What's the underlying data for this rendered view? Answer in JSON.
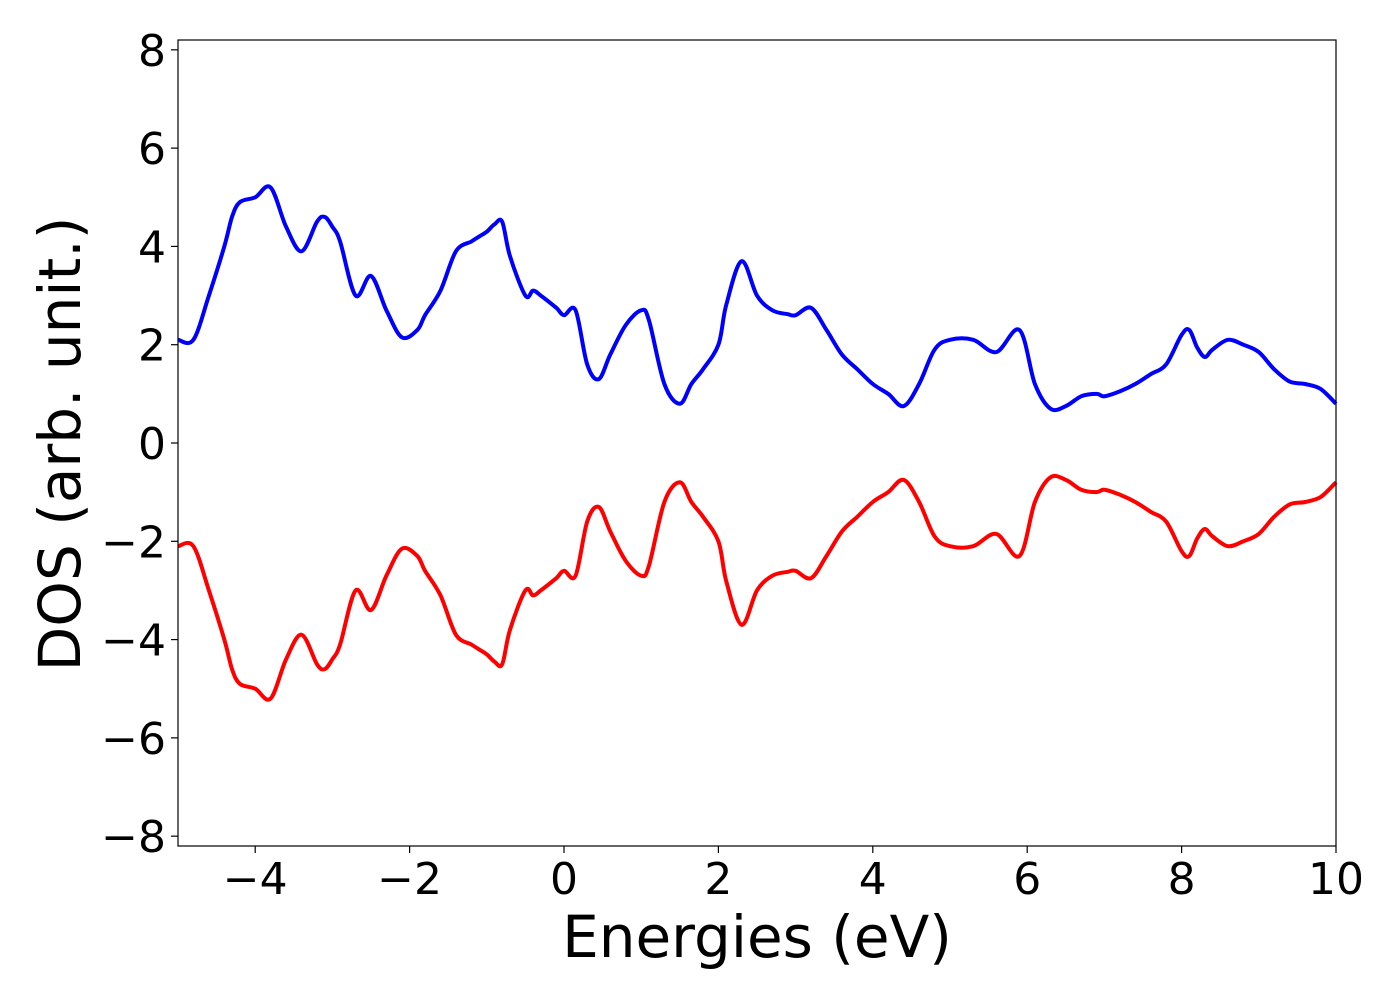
{
  "chart_data": {
    "type": "line",
    "title": "",
    "xlabel": "Energies (eV)",
    "ylabel": "DOS (arb. unit.)",
    "xlim": [
      -5,
      10
    ],
    "ylim": [
      -8.2,
      8.2
    ],
    "xticks": [
      -4,
      -2,
      0,
      2,
      4,
      6,
      8,
      10
    ],
    "xtick_labels": [
      "−4",
      "−2",
      "0",
      "2",
      "4",
      "6",
      "8",
      "10"
    ],
    "yticks": [
      -8,
      -6,
      -4,
      -2,
      0,
      2,
      4,
      6,
      8
    ],
    "ytick_labels": [
      "−8",
      "−6",
      "−4",
      "−2",
      "0",
      "2",
      "4",
      "6",
      "8"
    ],
    "grid": false,
    "legend": "none",
    "series": [
      {
        "color": "#0000ff",
        "x": [
          -5.0,
          -4.8,
          -4.6,
          -4.4,
          -4.3,
          -4.2,
          -4.0,
          -3.8,
          -3.6,
          -3.4,
          -3.2,
          -3.1,
          -3.0,
          -2.9,
          -2.7,
          -2.5,
          -2.3,
          -2.1,
          -1.9,
          -1.8,
          -1.6,
          -1.4,
          -1.2,
          -1.1,
          -1.0,
          -0.9,
          -0.8,
          -0.7,
          -0.5,
          -0.4,
          -0.3,
          -0.1,
          0.0,
          0.15,
          0.3,
          0.45,
          0.6,
          0.8,
          1.0,
          1.1,
          1.3,
          1.5,
          1.65,
          1.8,
          2.0,
          2.1,
          2.3,
          2.5,
          2.7,
          2.9,
          3.0,
          3.2,
          3.4,
          3.6,
          3.8,
          4.0,
          4.2,
          4.4,
          4.6,
          4.8,
          5.0,
          5.3,
          5.6,
          5.9,
          6.1,
          6.3,
          6.5,
          6.7,
          6.9,
          7.0,
          7.2,
          7.4,
          7.6,
          7.8,
          8.0,
          8.1,
          8.2,
          8.3,
          8.4,
          8.6,
          8.8,
          9.0,
          9.2,
          9.4,
          9.6,
          9.8,
          10.0
        ],
        "y": [
          2.1,
          2.1,
          3.0,
          4.0,
          4.6,
          4.9,
          5.0,
          5.2,
          4.4,
          3.9,
          4.5,
          4.6,
          4.4,
          4.1,
          3.0,
          3.4,
          2.7,
          2.15,
          2.3,
          2.6,
          3.1,
          3.9,
          4.1,
          4.2,
          4.3,
          4.45,
          4.5,
          3.8,
          3.0,
          3.1,
          3.0,
          2.75,
          2.6,
          2.7,
          1.6,
          1.3,
          1.8,
          2.4,
          2.7,
          2.5,
          1.2,
          0.8,
          1.2,
          1.5,
          2.0,
          2.8,
          3.7,
          3.0,
          2.7,
          2.62,
          2.6,
          2.75,
          2.3,
          1.8,
          1.5,
          1.2,
          1.0,
          0.75,
          1.2,
          1.9,
          2.1,
          2.1,
          1.85,
          2.3,
          1.2,
          0.7,
          0.75,
          0.95,
          1.0,
          0.95,
          1.05,
          1.2,
          1.4,
          1.6,
          2.2,
          2.3,
          1.95,
          1.75,
          1.9,
          2.1,
          2.0,
          1.85,
          1.5,
          1.25,
          1.2,
          1.1,
          0.8
        ]
      },
      {
        "color": "#ff0000",
        "x": [
          -5.0,
          -4.8,
          -4.6,
          -4.4,
          -4.3,
          -4.2,
          -4.0,
          -3.8,
          -3.6,
          -3.4,
          -3.2,
          -3.1,
          -3.0,
          -2.9,
          -2.7,
          -2.5,
          -2.3,
          -2.1,
          -1.9,
          -1.8,
          -1.6,
          -1.4,
          -1.2,
          -1.1,
          -1.0,
          -0.9,
          -0.8,
          -0.7,
          -0.5,
          -0.4,
          -0.3,
          -0.1,
          0.0,
          0.15,
          0.3,
          0.45,
          0.6,
          0.8,
          1.0,
          1.1,
          1.3,
          1.5,
          1.65,
          1.8,
          2.0,
          2.1,
          2.3,
          2.5,
          2.7,
          2.9,
          3.0,
          3.2,
          3.4,
          3.6,
          3.8,
          4.0,
          4.2,
          4.4,
          4.6,
          4.8,
          5.0,
          5.3,
          5.6,
          5.9,
          6.1,
          6.3,
          6.5,
          6.7,
          6.9,
          7.0,
          7.2,
          7.4,
          7.6,
          7.8,
          8.0,
          8.1,
          8.2,
          8.3,
          8.4,
          8.6,
          8.8,
          9.0,
          9.2,
          9.4,
          9.6,
          9.8,
          10.0
        ],
        "y": [
          -2.1,
          -2.1,
          -3.0,
          -4.0,
          -4.6,
          -4.9,
          -5.0,
          -5.2,
          -4.4,
          -3.9,
          -4.5,
          -4.6,
          -4.4,
          -4.1,
          -3.0,
          -3.4,
          -2.7,
          -2.15,
          -2.3,
          -2.6,
          -3.1,
          -3.9,
          -4.1,
          -4.2,
          -4.3,
          -4.45,
          -4.5,
          -3.8,
          -3.0,
          -3.1,
          -3.0,
          -2.75,
          -2.6,
          -2.7,
          -1.6,
          -1.3,
          -1.8,
          -2.4,
          -2.7,
          -2.5,
          -1.2,
          -0.8,
          -1.2,
          -1.5,
          -2.0,
          -2.8,
          -3.7,
          -3.0,
          -2.7,
          -2.62,
          -2.6,
          -2.75,
          -2.3,
          -1.8,
          -1.5,
          -1.2,
          -1.0,
          -0.75,
          -1.2,
          -1.9,
          -2.1,
          -2.1,
          -1.85,
          -2.3,
          -1.2,
          -0.7,
          -0.75,
          -0.95,
          -1.0,
          -0.95,
          -1.05,
          -1.2,
          -1.4,
          -1.6,
          -2.2,
          -2.3,
          -1.95,
          -1.75,
          -1.9,
          -2.1,
          -2.0,
          -1.85,
          -1.5,
          -1.25,
          -1.2,
          -1.1,
          -0.8
        ]
      }
    ]
  }
}
